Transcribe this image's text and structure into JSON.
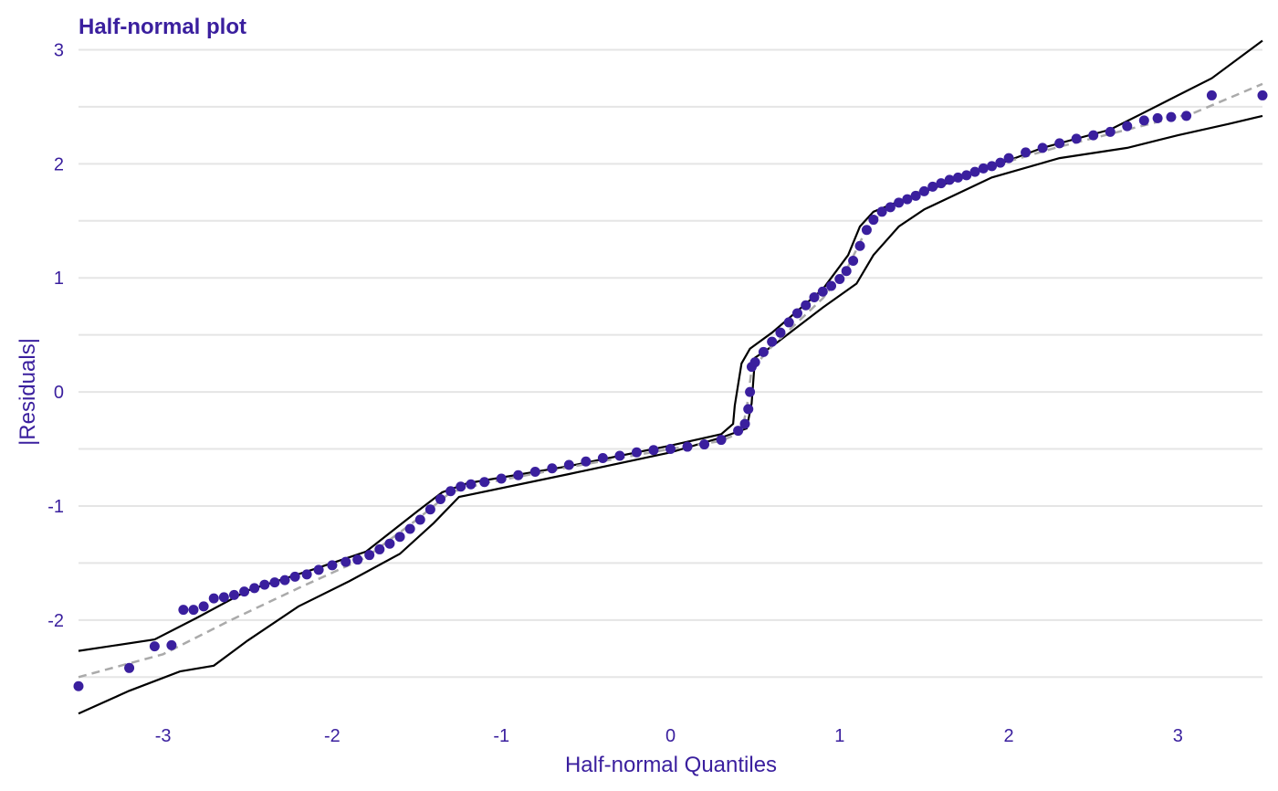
{
  "chart_data": {
    "type": "scatter",
    "title": "Half-normal plot",
    "xlabel": "Half-normal Quantiles",
    "ylabel": "|Residuals|",
    "xlim": [
      -3.5,
      3.5
    ],
    "ylim": [
      -2.85,
      3.1
    ],
    "x_ticks": [
      -3,
      -2,
      -1,
      0,
      1,
      2,
      3
    ],
    "x_tick_labels": [
      "-3",
      "-2",
      "-1",
      "0",
      "1",
      "2",
      "3"
    ],
    "y_ticks": [
      -2,
      -1,
      0,
      1,
      2,
      3
    ],
    "y_tick_labels": [
      "-2",
      "-1",
      "0",
      "1",
      "2",
      "3"
    ],
    "grid": true,
    "colors": {
      "points": "#3a1f9e",
      "text": "#3a1f9e",
      "reference": "#aaaaaa",
      "envelope": "#000000",
      "grid": "#e5e5e5"
    },
    "series": [
      {
        "kind": "points",
        "x": [
          -3.5,
          -3.2,
          -3.05,
          -2.95,
          -2.88,
          -2.82,
          -2.76,
          -2.7,
          -2.64,
          -2.58,
          -2.52,
          -2.46,
          -2.4,
          -2.34,
          -2.28,
          -2.22,
          -2.15,
          -2.08,
          -2.0,
          -1.92,
          -1.85,
          -1.78,
          -1.72,
          -1.66,
          -1.6,
          -1.54,
          -1.48,
          -1.42,
          -1.36,
          -1.3,
          -1.24,
          -1.18,
          -1.1,
          -1.0,
          -0.9,
          -0.8,
          -0.7,
          -0.6,
          -0.5,
          -0.4,
          -0.3,
          -0.2,
          -0.1,
          0.0,
          0.1,
          0.2,
          0.3,
          0.4,
          0.44,
          0.46,
          0.47,
          0.48,
          0.5,
          0.55,
          0.6,
          0.65,
          0.7,
          0.75,
          0.8,
          0.85,
          0.9,
          0.95,
          1.0,
          1.04,
          1.08,
          1.12,
          1.16,
          1.2,
          1.25,
          1.3,
          1.35,
          1.4,
          1.45,
          1.5,
          1.55,
          1.6,
          1.65,
          1.7,
          1.75,
          1.8,
          1.85,
          1.9,
          1.95,
          2.0,
          2.1,
          2.2,
          2.3,
          2.4,
          2.5,
          2.6,
          2.7,
          2.8,
          2.88,
          2.96,
          3.05,
          3.2,
          3.5
        ],
        "y": [
          -2.58,
          -2.42,
          -2.23,
          -2.22,
          -1.91,
          -1.91,
          -1.88,
          -1.81,
          -1.8,
          -1.78,
          -1.75,
          -1.72,
          -1.69,
          -1.67,
          -1.65,
          -1.62,
          -1.6,
          -1.56,
          -1.52,
          -1.49,
          -1.47,
          -1.43,
          -1.38,
          -1.33,
          -1.27,
          -1.2,
          -1.12,
          -1.03,
          -0.94,
          -0.87,
          -0.83,
          -0.81,
          -0.79,
          -0.76,
          -0.73,
          -0.7,
          -0.67,
          -0.64,
          -0.61,
          -0.58,
          -0.56,
          -0.53,
          -0.51,
          -0.5,
          -0.48,
          -0.46,
          -0.42,
          -0.34,
          -0.28,
          -0.15,
          0.0,
          0.22,
          0.26,
          0.35,
          0.44,
          0.52,
          0.61,
          0.69,
          0.76,
          0.83,
          0.88,
          0.93,
          0.99,
          1.06,
          1.15,
          1.28,
          1.42,
          1.51,
          1.58,
          1.62,
          1.66,
          1.69,
          1.72,
          1.76,
          1.8,
          1.83,
          1.86,
          1.88,
          1.9,
          1.93,
          1.96,
          1.98,
          2.01,
          2.05,
          2.1,
          2.14,
          2.18,
          2.22,
          2.25,
          2.28,
          2.33,
          2.38,
          2.4,
          2.41,
          2.42,
          2.6,
          2.6
        ]
      },
      {
        "kind": "reference",
        "x": [
          -3.5,
          -3.0,
          -2.6,
          -2.2,
          -1.8,
          -1.5,
          -1.3,
          -1.1,
          -0.6,
          0.0,
          0.3,
          0.42,
          0.45,
          0.48,
          0.6,
          0.9,
          1.05,
          1.15,
          1.25,
          1.5,
          1.9,
          2.3,
          2.7,
          3.1,
          3.5
        ],
        "y": [
          -2.5,
          -2.3,
          -2.0,
          -1.72,
          -1.45,
          -1.12,
          -0.88,
          -0.8,
          -0.66,
          -0.5,
          -0.43,
          -0.35,
          -0.15,
          0.2,
          0.4,
          0.82,
          1.1,
          1.4,
          1.58,
          1.78,
          1.98,
          2.15,
          2.3,
          2.45,
          2.7
        ]
      },
      {
        "kind": "envelope-upper",
        "x": [
          -3.5,
          -3.05,
          -2.8,
          -2.5,
          -2.1,
          -1.8,
          -1.5,
          -1.35,
          -1.2,
          -0.6,
          0.0,
          0.3,
          0.37,
          0.38,
          0.42,
          0.47,
          0.6,
          0.9,
          1.05,
          1.12,
          1.2,
          1.4,
          1.8,
          2.2,
          2.6,
          2.8,
          3.0,
          3.2,
          3.5
        ],
        "y": [
          -2.27,
          -2.17,
          -1.98,
          -1.74,
          -1.55,
          -1.4,
          -1.05,
          -0.88,
          -0.8,
          -0.65,
          -0.47,
          -0.37,
          -0.28,
          -0.12,
          0.25,
          0.38,
          0.52,
          0.9,
          1.2,
          1.45,
          1.58,
          1.7,
          1.92,
          2.14,
          2.3,
          2.45,
          2.6,
          2.75,
          3.08
        ]
      },
      {
        "kind": "envelope-lower",
        "x": [
          -3.5,
          -3.2,
          -2.9,
          -2.7,
          -2.5,
          -2.2,
          -1.9,
          -1.6,
          -1.4,
          -1.25,
          -0.6,
          0.0,
          0.3,
          0.45,
          0.48,
          0.5,
          0.6,
          0.9,
          1.1,
          1.2,
          1.35,
          1.5,
          1.9,
          2.3,
          2.7,
          3.0,
          3.3,
          3.5
        ],
        "y": [
          -2.82,
          -2.62,
          -2.45,
          -2.4,
          -2.18,
          -1.88,
          -1.66,
          -1.42,
          -1.15,
          -0.92,
          -0.72,
          -0.53,
          -0.4,
          -0.32,
          -0.1,
          0.3,
          0.4,
          0.74,
          0.95,
          1.2,
          1.45,
          1.6,
          1.88,
          2.05,
          2.14,
          2.25,
          2.35,
          2.42
        ]
      }
    ]
  }
}
